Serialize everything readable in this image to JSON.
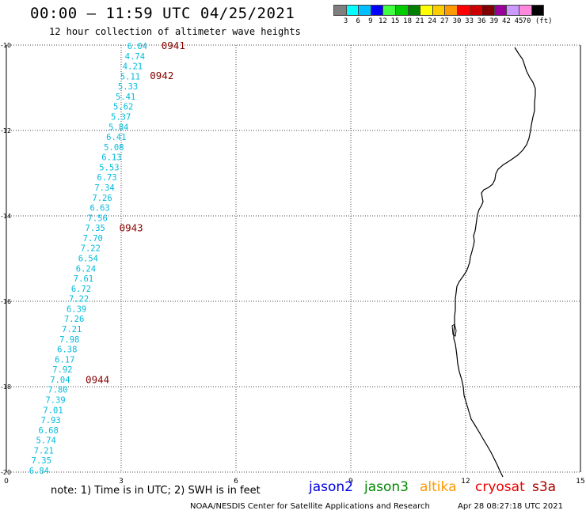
{
  "header": {
    "title": "00:00 – 11:59 UTC 04/25/2021",
    "subtitle": "12 hour collection of altimeter wave heights"
  },
  "colorbar": {
    "colors": [
      "#7f7f7f",
      "#00ffff",
      "#00bfff",
      "#0000ff",
      "#40ff40",
      "#00cc00",
      "#008000",
      "#ffff00",
      "#ffcc00",
      "#ff9900",
      "#ff0000",
      "#cc0000",
      "#800000",
      "#990099",
      "#cc99ff",
      "#ff88dd",
      "#000000"
    ],
    "labels": [
      "3",
      "6",
      "9",
      "12",
      "15",
      "18",
      "21",
      "24",
      "27",
      "30",
      "33",
      "36",
      "39",
      "42",
      "45",
      "70 (ft)"
    ]
  },
  "chart_data": {
    "type": "scatter",
    "x_range": [
      0,
      15
    ],
    "y_range": [
      -10,
      -20
    ],
    "x_ticks": [
      "0",
      "3",
      "6",
      "9",
      "12",
      "15"
    ],
    "y_ticks": [
      "-10",
      "-12",
      "-14",
      "-16",
      "-18",
      "-20"
    ],
    "grid": true,
    "swh_ft": [
      6.04,
      4.74,
      4.21,
      5.11,
      5.33,
      5.41,
      5.62,
      5.37,
      5.84,
      6.41,
      5.08,
      6.13,
      5.53,
      6.73,
      7.34,
      7.26,
      6.63,
      7.56,
      7.35,
      7.7,
      7.22,
      6.54,
      6.24,
      7.61,
      6.72,
      7.22,
      6.39,
      7.26,
      7.21,
      7.98,
      6.38,
      6.17,
      7.92,
      7.04,
      7.8,
      7.39,
      7.01,
      7.93,
      6.68,
      5.74,
      7.21,
      7.35,
      6.84
    ],
    "time_labels": [
      {
        "text": "0941",
        "x": 4.05,
        "y": -10.0
      },
      {
        "text": "0942",
        "x": 3.75,
        "y": -10.7
      },
      {
        "text": "0943",
        "x": 2.95,
        "y": -14.27
      },
      {
        "text": "0944",
        "x": 2.07,
        "y": -17.82
      }
    ]
  },
  "legend": {
    "note": "note: 1) Time is in UTC; 2) SWH is in feet",
    "satellites": [
      {
        "name": "jason2",
        "color": "#0000dd"
      },
      {
        "name": "jason3",
        "color": "#008800"
      },
      {
        "name": "altika",
        "color": "#ff9900"
      },
      {
        "name": "cryosat",
        "color": "#ee0000"
      },
      {
        "name": "s3a",
        "color": "#aa0000"
      }
    ]
  },
  "footer": {
    "credit": "NOAA/NESDIS Center for Satellite Applications and Research",
    "timestamp": "Apr 28 08:27:18 UTC 2021"
  },
  "colors": {
    "swh_text": "#00bbdd",
    "time_text": "#880000",
    "grid": "#444444"
  }
}
